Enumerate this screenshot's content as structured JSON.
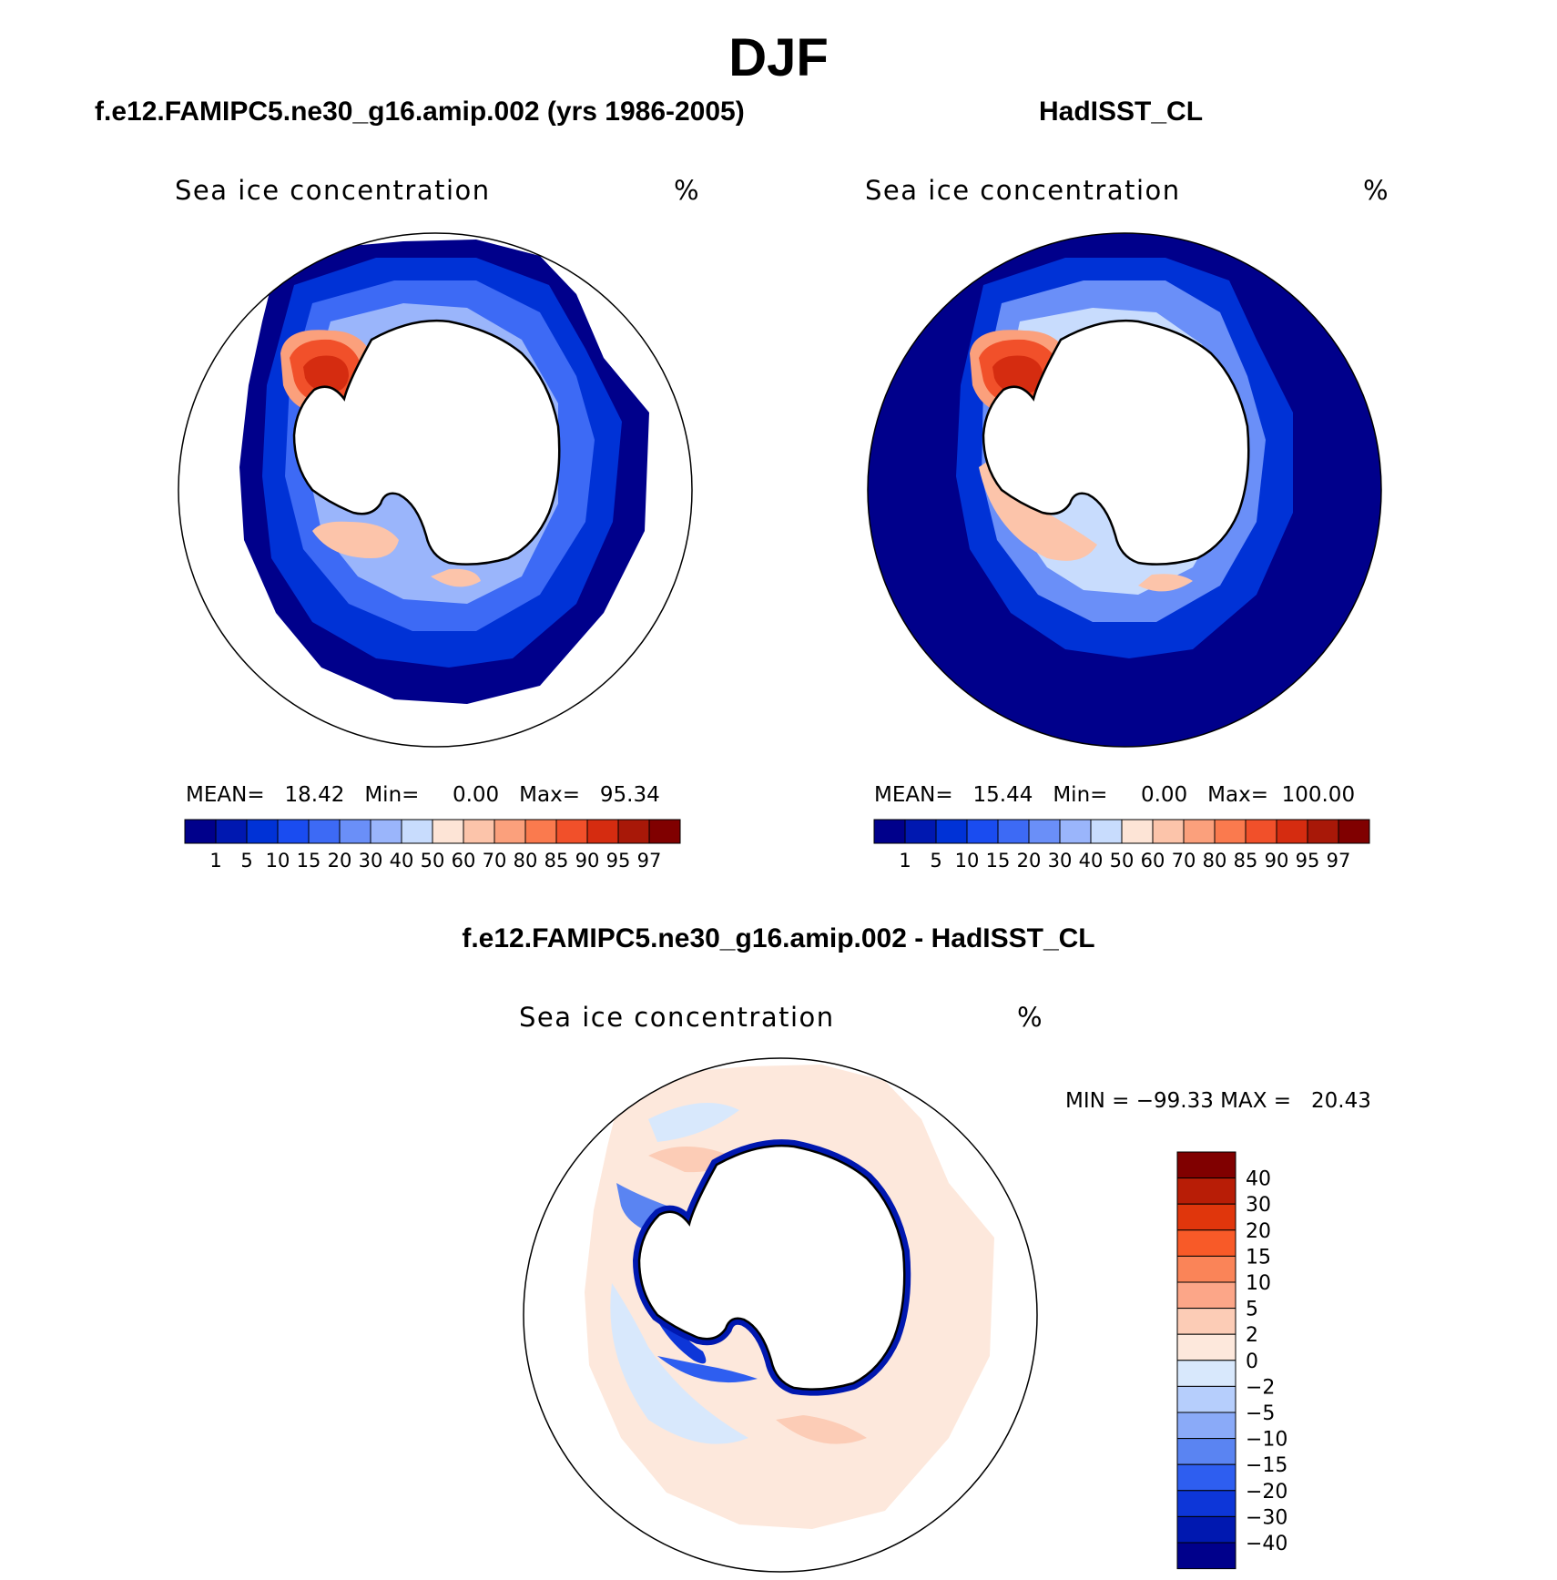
{
  "main_title": "DJF",
  "panel_left": {
    "case_title": "f.e12.FAMIPC5.ne30_g16.amip.002 (yrs 1986-2005)",
    "variable": "Sea ice concentration",
    "units": "%",
    "stats": {
      "mean_label": "MEAN=",
      "mean": "18.42",
      "min_label": "Min=",
      "min": "0.00",
      "max_label": "Max=",
      "max": "95.34"
    }
  },
  "panel_right": {
    "case_title": "HadISST_CL",
    "variable": "Sea ice concentration",
    "units": "%",
    "stats": {
      "mean_label": "MEAN=",
      "mean": "15.44",
      "min_label": "Min=",
      "min": "0.00",
      "max_label": "Max=",
      "max": "100.00"
    }
  },
  "panel_diff": {
    "case_title": "f.e12.FAMIPC5.ne30_g16.amip.002 - HadISST_CL",
    "variable": "Sea ice concentration",
    "units": "%",
    "minmax": "MIN = −99.33 MAX =   20.43"
  },
  "colorbar_abs": {
    "levels": [
      "1",
      "5",
      "10",
      "15",
      "20",
      "30",
      "40",
      "50",
      "60",
      "70",
      "80",
      "85",
      "90",
      "95",
      "97"
    ],
    "colors": [
      "#00008b",
      "#0018b0",
      "#0032d6",
      "#1a4cf0",
      "#3d6af5",
      "#6a8ff8",
      "#9ab5fb",
      "#c8dcfd",
      "#fde4d6",
      "#fcc4aa",
      "#fba07c",
      "#fa7a4e",
      "#f1502a",
      "#d52c10",
      "#a81808",
      "#800000"
    ]
  },
  "colorbar_diff": {
    "levels": [
      "40",
      "30",
      "20",
      "15",
      "10",
      "5",
      "2",
      "0",
      "−2",
      "−5",
      "−10",
      "−15",
      "−20",
      "−30",
      "−40"
    ],
    "colors": [
      "#800000",
      "#b81d06",
      "#e0360c",
      "#f85a28",
      "#fa8458",
      "#fca688",
      "#fcccb6",
      "#fde8dc",
      "#d8e8fc",
      "#b6cefc",
      "#8aaaf8",
      "#5a84f2",
      "#2e5ef0",
      "#0d36d8",
      "#0018b0",
      "#00008b"
    ]
  }
}
